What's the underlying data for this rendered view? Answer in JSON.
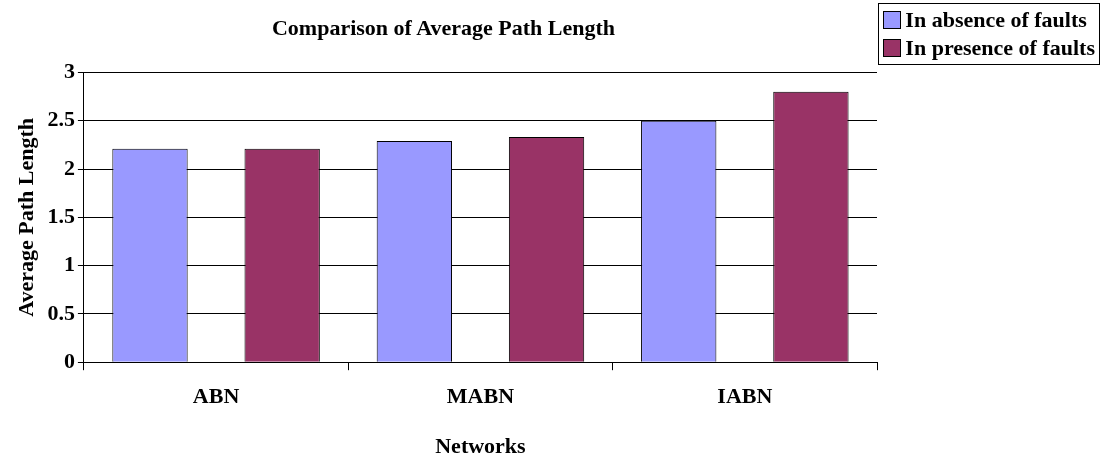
{
  "chart_data": {
    "type": "bar",
    "title": "Comparison of Average Path Length",
    "xlabel": "Networks",
    "ylabel": "Average Path Length",
    "categories": [
      "ABN",
      "MABN",
      "IABN"
    ],
    "series": [
      {
        "name": "In absence of faults",
        "color": "#9999ff",
        "values": [
          2.21,
          2.29,
          2.5
        ]
      },
      {
        "name": "In presence of faults",
        "color": "#993366",
        "values": [
          2.21,
          2.33,
          2.8
        ]
      }
    ],
    "ylim": [
      0,
      3
    ],
    "yticks": [
      0,
      0.5,
      1,
      1.5,
      2,
      2.5,
      3
    ],
    "grid": "y",
    "legend": "top right"
  }
}
